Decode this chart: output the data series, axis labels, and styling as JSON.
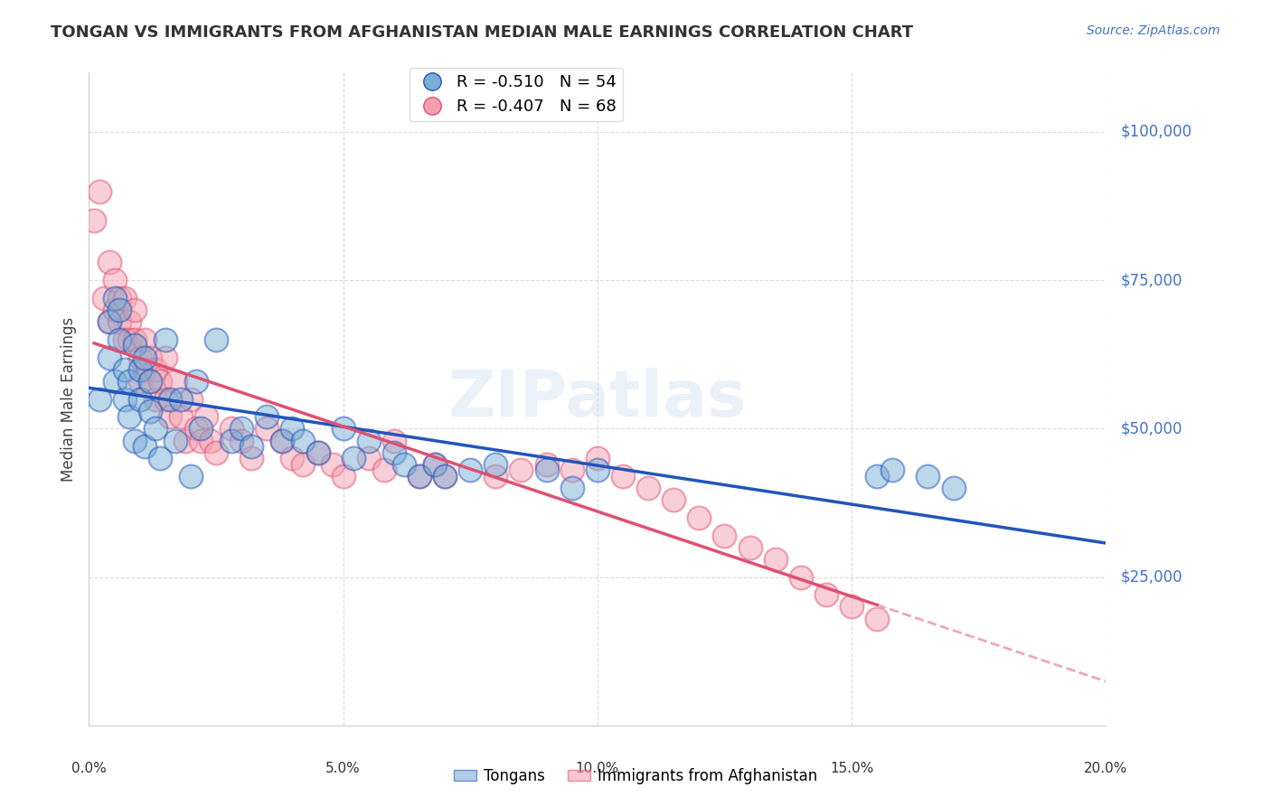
{
  "title": "TONGAN VS IMMIGRANTS FROM AFGHANISTAN MEDIAN MALE EARNINGS CORRELATION CHART",
  "source": "Source: ZipAtlas.com",
  "ylabel": "Median Male Earnings",
  "xlim": [
    0.0,
    0.2
  ],
  "ylim": [
    0,
    110000
  ],
  "yticks": [
    0,
    25000,
    50000,
    75000,
    100000
  ],
  "xticks": [
    0.0,
    0.05,
    0.1,
    0.15,
    0.2
  ],
  "xtick_labels": [
    "0.0%",
    "5.0%",
    "10.0%",
    "15.0%",
    "20.0%"
  ],
  "background_color": "#ffffff",
  "grid_color": "#cccccc",
  "tongan_color": "#7aaed6",
  "afghan_color": "#f4a0b0",
  "tongan_line_color": "#2255bb",
  "afghan_line_color": "#e05070",
  "legend_label_1": "R = -0.510   N = 54",
  "legend_label_2": "R = -0.407   N = 68",
  "watermark": "ZIPatlas",
  "tongan_x": [
    0.002,
    0.004,
    0.004,
    0.005,
    0.005,
    0.006,
    0.006,
    0.007,
    0.007,
    0.008,
    0.008,
    0.009,
    0.009,
    0.01,
    0.01,
    0.011,
    0.011,
    0.012,
    0.012,
    0.013,
    0.014,
    0.015,
    0.016,
    0.017,
    0.018,
    0.02,
    0.021,
    0.022,
    0.025,
    0.028,
    0.03,
    0.032,
    0.035,
    0.038,
    0.04,
    0.042,
    0.045,
    0.05,
    0.052,
    0.055,
    0.06,
    0.062,
    0.065,
    0.068,
    0.07,
    0.075,
    0.08,
    0.09,
    0.095,
    0.1,
    0.155,
    0.158,
    0.165,
    0.17
  ],
  "tongan_y": [
    55000,
    62000,
    68000,
    72000,
    58000,
    65000,
    70000,
    60000,
    55000,
    58000,
    52000,
    48000,
    64000,
    55000,
    60000,
    62000,
    47000,
    58000,
    53000,
    50000,
    45000,
    65000,
    55000,
    48000,
    55000,
    42000,
    58000,
    50000,
    65000,
    48000,
    50000,
    47000,
    52000,
    48000,
    50000,
    48000,
    46000,
    50000,
    45000,
    48000,
    46000,
    44000,
    42000,
    44000,
    42000,
    43000,
    44000,
    43000,
    40000,
    43000,
    42000,
    43000,
    42000,
    40000
  ],
  "afghan_x": [
    0.001,
    0.002,
    0.003,
    0.004,
    0.004,
    0.005,
    0.005,
    0.006,
    0.006,
    0.007,
    0.007,
    0.008,
    0.008,
    0.009,
    0.009,
    0.01,
    0.01,
    0.011,
    0.011,
    0.012,
    0.012,
    0.013,
    0.013,
    0.014,
    0.015,
    0.015,
    0.016,
    0.017,
    0.018,
    0.019,
    0.02,
    0.021,
    0.022,
    0.023,
    0.024,
    0.025,
    0.028,
    0.03,
    0.032,
    0.035,
    0.038,
    0.04,
    0.042,
    0.045,
    0.048,
    0.05,
    0.055,
    0.058,
    0.06,
    0.065,
    0.068,
    0.07,
    0.08,
    0.085,
    0.09,
    0.095,
    0.1,
    0.105,
    0.11,
    0.115,
    0.12,
    0.125,
    0.13,
    0.135,
    0.14,
    0.145,
    0.15,
    0.155
  ],
  "afghan_y": [
    85000,
    90000,
    72000,
    78000,
    68000,
    75000,
    70000,
    72000,
    68000,
    65000,
    72000,
    68000,
    65000,
    70000,
    65000,
    62000,
    58000,
    65000,
    60000,
    62000,
    58000,
    60000,
    55000,
    58000,
    62000,
    55000,
    52000,
    58000,
    52000,
    48000,
    55000,
    50000,
    48000,
    52000,
    48000,
    46000,
    50000,
    48000,
    45000,
    50000,
    48000,
    45000,
    44000,
    46000,
    44000,
    42000,
    45000,
    43000,
    48000,
    42000,
    44000,
    42000,
    42000,
    43000,
    44000,
    43000,
    45000,
    42000,
    40000,
    38000,
    35000,
    32000,
    30000,
    28000,
    25000,
    22000,
    20000,
    18000
  ]
}
